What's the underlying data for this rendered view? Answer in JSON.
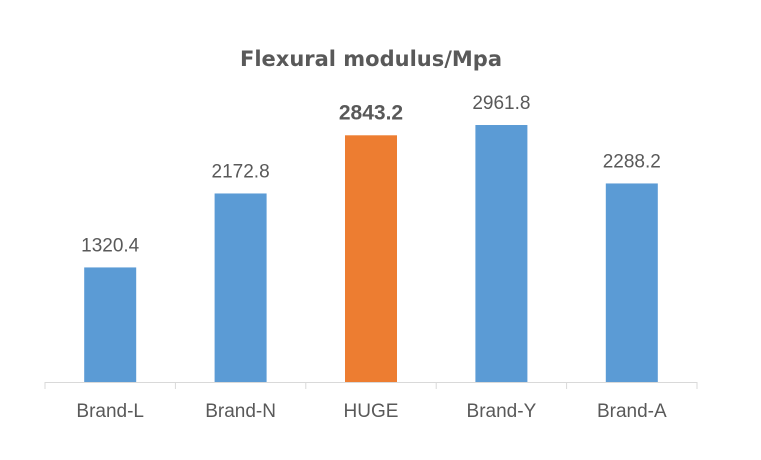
{
  "chart_data": {
    "type": "bar",
    "title": "Flexural modulus/Mpa",
    "categories": [
      "Brand-L",
      "Brand-N",
      "HUGE",
      "Brand-Y",
      "Brand-A"
    ],
    "values": [
      1320.4,
      2172.8,
      2843.2,
      2961.8,
      2288.2
    ],
    "data_labels": [
      "1320.4",
      "2172.8",
      "2843.2",
      "2961.8",
      "2288.2"
    ],
    "ylim": [
      0,
      3250
    ],
    "grid": false,
    "legend": "none",
    "highlight_index": 2,
    "colors": {
      "bar": "#5b9bd5",
      "highlight_bar": "#ed7d31",
      "highlight_label": "#c55a11",
      "label": "#595959",
      "axis": "#d9d9d9"
    }
  }
}
